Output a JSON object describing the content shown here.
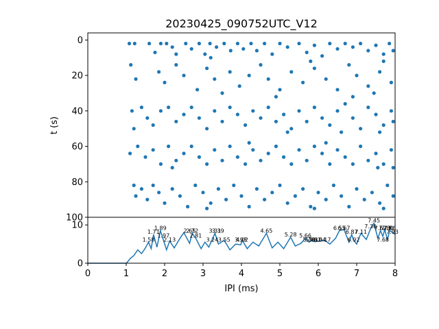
{
  "chart_data": [
    {
      "type": "scatter",
      "title": "20230425_090752UTC_V12",
      "xlabel": "",
      "ylabel": "t (s)",
      "xlim": [
        0,
        8
      ],
      "ylim": [
        100,
        -4
      ],
      "y_inverted": true,
      "yticks": [
        "0",
        "20",
        "40",
        "60",
        "80",
        "100"
      ],
      "marker_color": "#1f77b4",
      "grid": false,
      "note": "Raster of inter-pulse intervals (ms) vs time (s); dense dots between IPI 1.0 and 8.0 ms, clustered in time bands around 0-32 s, 36-52 s, 58-72 s, 80-96 s.",
      "points": [
        [
          1.08,
          2
        ],
        [
          1.12,
          14
        ],
        [
          1.25,
          22
        ],
        [
          1.22,
          2
        ],
        [
          1.6,
          2
        ],
        [
          1.75,
          7
        ],
        [
          1.9,
          2
        ],
        [
          2.05,
          2
        ],
        [
          2.2,
          4
        ],
        [
          2.3,
          8
        ],
        [
          2.55,
          2
        ],
        [
          2.7,
          5
        ],
        [
          2.9,
          2
        ],
        [
          3.05,
          8
        ],
        [
          3.18,
          2
        ],
        [
          3.35,
          4
        ],
        [
          3.55,
          2
        ],
        [
          3.72,
          6
        ],
        [
          3.9,
          2
        ],
        [
          4.05,
          5
        ],
        [
          4.25,
          2
        ],
        [
          4.4,
          6
        ],
        [
          4.6,
          2
        ],
        [
          4.8,
          8
        ],
        [
          5.0,
          2
        ],
        [
          5.2,
          4
        ],
        [
          5.5,
          2
        ],
        [
          5.7,
          7
        ],
        [
          5.9,
          3
        ],
        [
          6.1,
          9
        ],
        [
          6.3,
          2
        ],
        [
          6.5,
          5
        ],
        [
          6.7,
          2
        ],
        [
          6.9,
          4
        ],
        [
          7.1,
          2
        ],
        [
          7.3,
          6
        ],
        [
          7.5,
          3
        ],
        [
          7.7,
          8
        ],
        [
          7.85,
          2
        ],
        [
          7.95,
          6
        ],
        [
          1.85,
          18
        ],
        [
          2.0,
          24
        ],
        [
          2.3,
          14
        ],
        [
          2.5,
          20
        ],
        [
          2.85,
          28
        ],
        [
          3.1,
          16
        ],
        [
          3.3,
          22
        ],
        [
          3.5,
          30
        ],
        [
          3.7,
          18
        ],
        [
          3.95,
          26
        ],
        [
          4.2,
          20
        ],
        [
          4.5,
          14
        ],
        [
          4.7,
          22
        ],
        [
          5.0,
          28
        ],
        [
          5.3,
          18
        ],
        [
          5.6,
          24
        ],
        [
          5.9,
          16
        ],
        [
          6.2,
          22
        ],
        [
          6.5,
          28
        ],
        [
          6.8,
          14
        ],
        [
          7.0,
          20
        ],
        [
          7.3,
          26
        ],
        [
          7.6,
          18
        ],
        [
          7.9,
          24
        ],
        [
          7.7,
          12
        ],
        [
          7.45,
          30
        ],
        [
          6.9,
          32
        ],
        [
          5.8,
          12
        ],
        [
          4.9,
          32
        ],
        [
          3.2,
          10
        ],
        [
          1.15,
          40
        ],
        [
          1.2,
          50
        ],
        [
          1.4,
          38
        ],
        [
          1.55,
          44
        ],
        [
          1.7,
          48
        ],
        [
          1.9,
          40
        ],
        [
          2.1,
          38
        ],
        [
          2.3,
          46
        ],
        [
          2.5,
          42
        ],
        [
          2.7,
          38
        ],
        [
          2.9,
          44
        ],
        [
          3.1,
          50
        ],
        [
          3.3,
          40
        ],
        [
          3.5,
          46
        ],
        [
          3.7,
          38
        ],
        [
          3.9,
          42
        ],
        [
          4.1,
          48
        ],
        [
          4.3,
          40
        ],
        [
          4.5,
          44
        ],
        [
          4.7,
          38
        ],
        [
          4.9,
          46
        ],
        [
          5.1,
          42
        ],
        [
          5.3,
          50
        ],
        [
          5.5,
          40
        ],
        [
          5.7,
          46
        ],
        [
          5.9,
          38
        ],
        [
          6.1,
          44
        ],
        [
          6.3,
          48
        ],
        [
          6.5,
          40
        ],
        [
          6.7,
          36
        ],
        [
          6.9,
          44
        ],
        [
          7.1,
          50
        ],
        [
          7.3,
          38
        ],
        [
          7.5,
          42
        ],
        [
          7.7,
          48
        ],
        [
          7.9,
          40
        ],
        [
          7.95,
          46
        ],
        [
          7.6,
          52
        ],
        [
          6.6,
          52
        ],
        [
          5.2,
          52
        ],
        [
          1.1,
          64
        ],
        [
          1.3,
          60
        ],
        [
          1.5,
          66
        ],
        [
          1.7,
          62
        ],
        [
          1.9,
          70
        ],
        [
          2.1,
          60
        ],
        [
          2.3,
          68
        ],
        [
          2.5,
          64
        ],
        [
          2.7,
          60
        ],
        [
          2.9,
          66
        ],
        [
          3.1,
          70
        ],
        [
          3.3,
          62
        ],
        [
          3.5,
          68
        ],
        [
          3.7,
          60
        ],
        [
          3.9,
          66
        ],
        [
          4.1,
          70
        ],
        [
          4.3,
          62
        ],
        [
          4.5,
          68
        ],
        [
          4.7,
          64
        ],
        [
          4.9,
          60
        ],
        [
          5.1,
          66
        ],
        [
          5.3,
          70
        ],
        [
          5.5,
          62
        ],
        [
          5.7,
          68
        ],
        [
          5.9,
          60
        ],
        [
          6.1,
          64
        ],
        [
          6.3,
          70
        ],
        [
          6.5,
          62
        ],
        [
          6.7,
          66
        ],
        [
          6.9,
          70
        ],
        [
          7.1,
          60
        ],
        [
          7.3,
          68
        ],
        [
          7.5,
          64
        ],
        [
          7.7,
          70
        ],
        [
          7.9,
          62
        ],
        [
          7.95,
          72
        ],
        [
          7.55,
          72
        ],
        [
          6.2,
          58
        ],
        [
          4.2,
          58
        ],
        [
          2.2,
          72
        ],
        [
          1.2,
          82
        ],
        [
          1.25,
          88
        ],
        [
          1.4,
          84
        ],
        [
          1.55,
          90
        ],
        [
          1.7,
          82
        ],
        [
          1.85,
          86
        ],
        [
          2.0,
          92
        ],
        [
          2.2,
          84
        ],
        [
          2.4,
          88
        ],
        [
          2.6,
          94
        ],
        [
          2.8,
          82
        ],
        [
          3.0,
          86
        ],
        [
          3.2,
          92
        ],
        [
          3.4,
          84
        ],
        [
          3.6,
          90
        ],
        [
          3.8,
          82
        ],
        [
          4.0,
          88
        ],
        [
          4.2,
          94
        ],
        [
          4.4,
          84
        ],
        [
          4.6,
          90
        ],
        [
          4.8,
          86
        ],
        [
          5.0,
          82
        ],
        [
          5.2,
          92
        ],
        [
          5.4,
          88
        ],
        [
          5.6,
          84
        ],
        [
          5.8,
          94
        ],
        [
          6.0,
          86
        ],
        [
          6.2,
          90
        ],
        [
          6.4,
          82
        ],
        [
          6.6,
          88
        ],
        [
          6.8,
          94
        ],
        [
          7.0,
          84
        ],
        [
          7.2,
          90
        ],
        [
          7.4,
          86
        ],
        [
          7.6,
          92
        ],
        [
          7.8,
          82
        ],
        [
          7.95,
          88
        ],
        [
          7.7,
          95
        ],
        [
          5.9,
          95
        ],
        [
          3.1,
          95
        ]
      ]
    },
    {
      "type": "line",
      "xlabel": "IPI (ms)",
      "ylabel": "",
      "xlim": [
        0,
        8
      ],
      "ylim": [
        0,
        12
      ],
      "xticks": [
        "0",
        "1",
        "2",
        "3",
        "4",
        "5",
        "6",
        "7",
        "8"
      ],
      "yticks": [
        "0",
        "10"
      ],
      "line_color": "#1f77b4",
      "grid": false,
      "x": [
        0,
        0.5,
        1.0,
        1.05,
        1.1,
        1.2,
        1.3,
        1.4,
        1.5,
        1.58,
        1.65,
        1.71,
        1.8,
        1.89,
        1.97,
        2.05,
        2.13,
        2.25,
        2.4,
        2.5,
        2.65,
        2.72,
        2.81,
        2.95,
        3.05,
        3.15,
        3.24,
        3.31,
        3.4,
        3.55,
        3.7,
        3.85,
        3.98,
        4.02,
        4.15,
        4.3,
        4.45,
        4.65,
        4.8,
        4.95,
        5.1,
        5.28,
        5.4,
        5.55,
        5.66,
        5.76,
        5.83,
        5.91,
        6.04,
        6.17,
        6.3,
        6.45,
        6.55,
        6.67,
        6.8,
        6.87,
        6.92,
        7.0,
        7.11,
        7.25,
        7.36,
        7.45,
        7.55,
        7.62,
        7.68,
        7.73,
        7.8,
        7.86,
        7.93,
        8.0
      ],
      "y": [
        0,
        0,
        0,
        0.5,
        1.2,
        2.0,
        3.5,
        2.5,
        4.0,
        5.5,
        3.8,
        7.5,
        4.2,
        8.5,
        6.0,
        3.5,
        5.8,
        4.0,
        6.5,
        8.0,
        5.2,
        7.8,
        6.5,
        3.8,
        5.5,
        4.2,
        6.2,
        7.8,
        5.0,
        6.0,
        3.5,
        5.0,
        4.8,
        6.0,
        3.8,
        5.5,
        4.5,
        7.8,
        4.0,
        5.5,
        3.8,
        6.8,
        4.5,
        5.2,
        6.5,
        5.5,
        6.0,
        5.6,
        5.8,
        6.0,
        5.0,
        6.5,
        8.5,
        8.8,
        5.5,
        7.5,
        6.0,
        5.0,
        7.8,
        6.2,
        9.0,
        10.5,
        6.5,
        8.5,
        7.0,
        8.8,
        6.2,
        8.5,
        8.0,
        7.5
      ],
      "annotations": [
        {
          "x": 1.58,
          "y": 5.5,
          "text": "1.58"
        },
        {
          "x": 1.71,
          "y": 7.5,
          "text": "1.71"
        },
        {
          "x": 1.89,
          "y": 8.5,
          "text": "1.89"
        },
        {
          "x": 1.97,
          "y": 6.5,
          "text": "1.97"
        },
        {
          "x": 2.13,
          "y": 5.5,
          "text": "2.13"
        },
        {
          "x": 2.65,
          "y": 7.8,
          "text": "2.65"
        },
        {
          "x": 2.72,
          "y": 7.8,
          "text": "2.72"
        },
        {
          "x": 2.81,
          "y": 6.5,
          "text": "2.81"
        },
        {
          "x": 3.24,
          "y": 5.5,
          "text": "3.24"
        },
        {
          "x": 3.31,
          "y": 7.8,
          "text": "3.31"
        },
        {
          "x": 3.39,
          "y": 7.8,
          "text": "3.39"
        },
        {
          "x": 3.55,
          "y": 5.5,
          "text": "3.55"
        },
        {
          "x": 3.98,
          "y": 5.5,
          "text": "3.98"
        },
        {
          "x": 4.02,
          "y": 5.5,
          "text": "4.02"
        },
        {
          "x": 4.65,
          "y": 7.8,
          "text": "4.65"
        },
        {
          "x": 5.28,
          "y": 6.8,
          "text": "5.28"
        },
        {
          "x": 5.66,
          "y": 6.5,
          "text": "5.66"
        },
        {
          "x": 5.76,
          "y": 5.5,
          "text": "5.76"
        },
        {
          "x": 5.83,
          "y": 5.5,
          "text": "5.83"
        },
        {
          "x": 5.91,
          "y": 5.5,
          "text": "5.91"
        },
        {
          "x": 6.04,
          "y": 5.5,
          "text": "6.04"
        },
        {
          "x": 6.17,
          "y": 5.5,
          "text": "6.17"
        },
        {
          "x": 6.55,
          "y": 8.5,
          "text": "6.55"
        },
        {
          "x": 6.67,
          "y": 8.5,
          "text": "6.67"
        },
        {
          "x": 6.87,
          "y": 7.5,
          "text": "6.87"
        },
        {
          "x": 6.92,
          "y": 5.5,
          "text": "6.92"
        },
        {
          "x": 7.11,
          "y": 7.5,
          "text": "7.11"
        },
        {
          "x": 7.36,
          "y": 9.0,
          "text": "7.36"
        },
        {
          "x": 7.45,
          "y": 10.5,
          "text": "7.45"
        },
        {
          "x": 7.62,
          "y": 8.5,
          "text": "7.62"
        },
        {
          "x": 7.68,
          "y": 5.5,
          "text": "7.68"
        },
        {
          "x": 7.73,
          "y": 8.5,
          "text": "7.73"
        },
        {
          "x": 7.8,
          "y": 8.5,
          "text": "7.80"
        },
        {
          "x": 7.86,
          "y": 8.5,
          "text": "7.86"
        },
        {
          "x": 7.93,
          "y": 7.5,
          "text": "7.93"
        }
      ]
    }
  ]
}
